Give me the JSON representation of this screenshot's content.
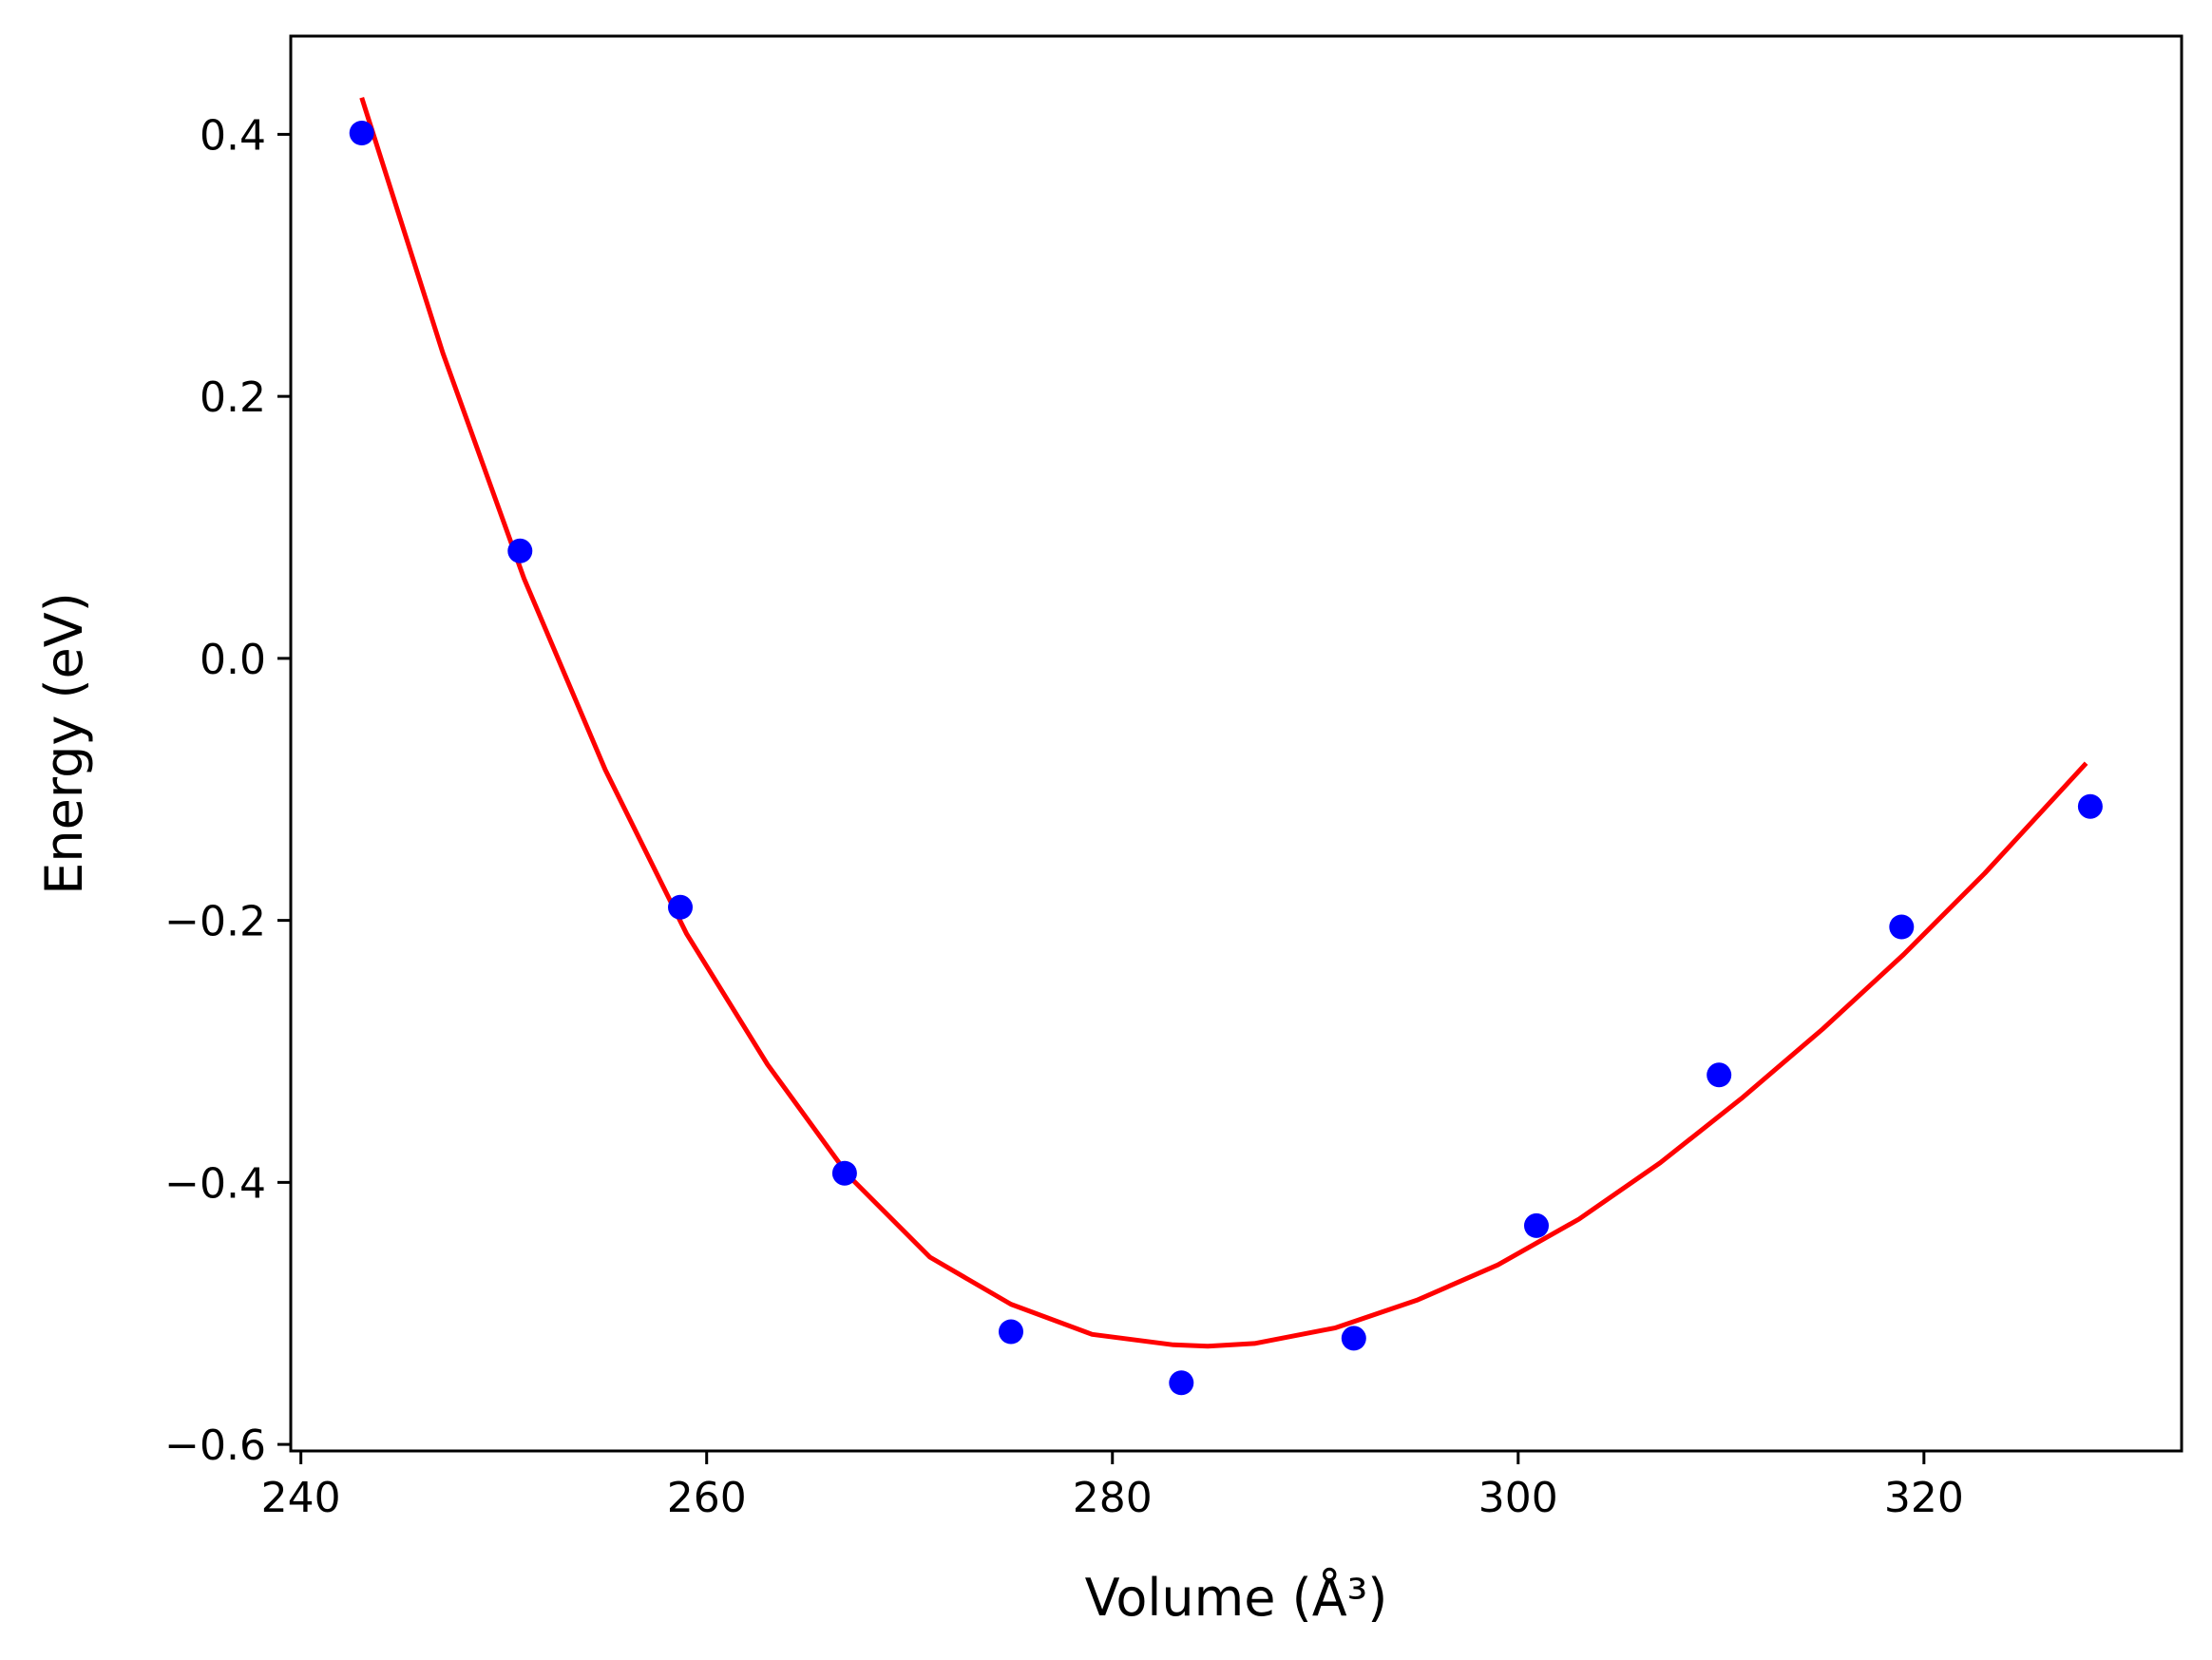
{
  "chart_data": {
    "type": "scatter",
    "xlabel": "Volume (Å³)",
    "ylabel": "Energy (eV)",
    "xlim": [
      239.5,
      332.7
    ],
    "ylim": [
      -0.605,
      0.475
    ],
    "x_ticks": [
      240,
      260,
      280,
      300,
      320
    ],
    "y_ticks": [
      -0.6,
      -0.4,
      -0.2,
      0.0,
      0.2,
      0.4
    ],
    "x_tick_labels": [
      "240",
      "260",
      "280",
      "300",
      "320"
    ],
    "y_tick_labels": [
      "−0.6",
      "−0.4",
      "−0.2",
      "0.0",
      "0.2",
      "0.4"
    ],
    "grid": false,
    "legend": "none",
    "series": [
      {
        "kind": "points",
        "color": "#0000ff",
        "x": [
          243.0,
          250.8,
          258.7,
          266.8,
          275.0,
          283.4,
          291.9,
          300.9,
          309.9,
          318.9,
          328.2
        ],
        "y": [
          0.401,
          0.082,
          -0.19,
          -0.393,
          -0.514,
          -0.553,
          -0.519,
          -0.433,
          -0.318,
          -0.205,
          -0.113
        ]
      },
      {
        "kind": "fit-line",
        "color": "#ff0000",
        "x": [
          243.0,
          247.0,
          251.0,
          255.0,
          259.0,
          263.0,
          267.0,
          271.0,
          275.0,
          279.0,
          283.0,
          284.7,
          287.0,
          291.0,
          295.0,
          299.0,
          303.0,
          307.0,
          311.0,
          315.0,
          319.0,
          323.0,
          328.0
        ],
        "y": [
          0.428,
          0.233,
          0.061,
          -0.085,
          -0.21,
          -0.31,
          -0.395,
          -0.457,
          -0.493,
          -0.516,
          -0.524,
          -0.525,
          -0.523,
          -0.511,
          -0.49,
          -0.463,
          -0.428,
          -0.385,
          -0.336,
          -0.283,
          -0.226,
          -0.164,
          -0.08
        ]
      }
    ]
  },
  "colors": {
    "frame": "#000000",
    "background": "#ffffff"
  }
}
